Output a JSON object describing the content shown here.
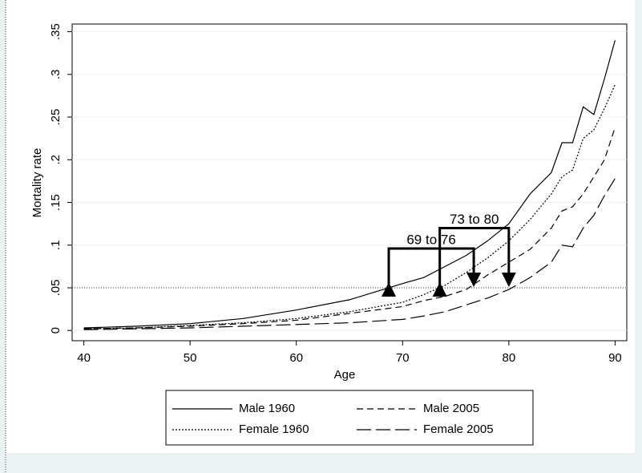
{
  "chart_data": {
    "type": "line",
    "x_label": "Age",
    "y_label": "Mortality rate",
    "x": [
      40,
      45,
      50,
      55,
      60,
      65,
      70,
      72,
      74,
      76,
      78,
      80,
      82,
      84,
      85,
      86,
      87,
      88,
      89,
      90
    ],
    "series": [
      {
        "name": "Male 1960",
        "color": "#000000",
        "dash": "none",
        "values": [
          0.003,
          0.005,
          0.008,
          0.014,
          0.024,
          0.036,
          0.055,
          0.062,
          0.075,
          0.088,
          0.105,
          0.125,
          0.16,
          0.185,
          0.22,
          0.22,
          0.262,
          0.253,
          0.295,
          0.34
        ]
      },
      {
        "name": "Female 1960",
        "color": "#000000",
        "dash": "2 2",
        "values": [
          0.002,
          0.003,
          0.006,
          0.009,
          0.014,
          0.022,
          0.033,
          0.042,
          0.053,
          0.068,
          0.085,
          0.105,
          0.13,
          0.16,
          0.18,
          0.188,
          0.225,
          0.235,
          0.26,
          0.288
        ]
      },
      {
        "name": "Male 2005",
        "color": "#000000",
        "dash": "8 5",
        "values": [
          0.002,
          0.003,
          0.005,
          0.008,
          0.012,
          0.02,
          0.028,
          0.035,
          0.04,
          0.048,
          0.065,
          0.08,
          0.095,
          0.12,
          0.14,
          0.145,
          0.16,
          0.18,
          0.2,
          0.238
        ]
      },
      {
        "name": "Female 2005",
        "color": "#000000",
        "dash": "18 6",
        "values": [
          0.001,
          0.002,
          0.003,
          0.005,
          0.007,
          0.009,
          0.013,
          0.017,
          0.022,
          0.03,
          0.038,
          0.048,
          0.062,
          0.08,
          0.1,
          0.098,
          0.12,
          0.135,
          0.158,
          0.178
        ]
      }
    ],
    "reference_line": 0.05,
    "annotations": [
      {
        "text": "69 to 76",
        "x": [
          68.7,
          76.7
        ],
        "y": 0.096
      },
      {
        "text": "73 to 80",
        "x": [
          73.5,
          80
        ],
        "y": 0.12
      }
    ],
    "xlim": [
      38.9,
      91.1
    ],
    "xticks": [
      40,
      50,
      60,
      70,
      80,
      90
    ],
    "ylim": [
      -0.012,
      0.359
    ],
    "yticks": [
      0,
      {
        "value": 0.05,
        "label": ".05"
      },
      {
        "value": 0.1,
        "label": ".1"
      },
      {
        "value": 0.15,
        "label": ".15"
      },
      {
        "value": 0.2,
        "label": ".2"
      },
      {
        "value": 0.25,
        "label": ".25"
      },
      {
        "value": 0.3,
        "label": ".3"
      },
      {
        "value": 0.35,
        "label": ".35"
      }
    ],
    "grid": true
  }
}
